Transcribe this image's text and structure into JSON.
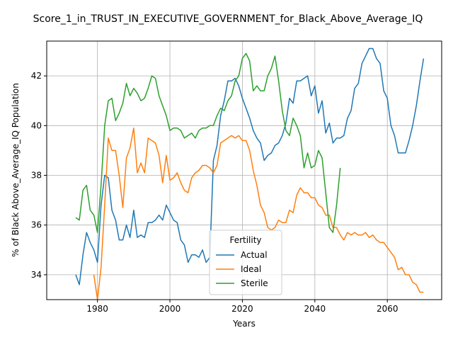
{
  "chart_data": {
    "type": "line",
    "title": "Score_1_in_TRUST_IN_EXECUTIVE_GOVERNMENT_for_Black_Above_Average_IQ",
    "xlabel": "Years",
    "ylabel": "% of Black Above_Average_IQ Population",
    "xlim": [
      1966,
      2075
    ],
    "ylim": [
      33.0,
      43.4
    ],
    "xticks": [
      1980,
      2000,
      2020,
      2040,
      2060
    ],
    "yticks": [
      34,
      36,
      38,
      40,
      42
    ],
    "grid": true,
    "legend": {
      "title": "Fertility",
      "placement": "lower-center"
    },
    "series": [
      {
        "name": "Actual",
        "color": "#1f77b4",
        "x": [
          1974,
          1975,
          1976,
          1977,
          1978,
          1979,
          1980,
          1981,
          1982,
          1983,
          1984,
          1985,
          1986,
          1987,
          1988,
          1989,
          1990,
          1991,
          1992,
          1993,
          1994,
          1995,
          1996,
          1997,
          1998,
          1999,
          2000,
          2001,
          2002,
          2003,
          2004,
          2005,
          2006,
          2007,
          2008,
          2009,
          2010,
          2011,
          2012,
          2013,
          2014,
          2015,
          2016,
          2017,
          2018,
          2019,
          2020,
          2021,
          2022,
          2023,
          2024,
          2025,
          2026,
          2027,
          2028,
          2029,
          2030,
          2031,
          2032,
          2033,
          2034,
          2035,
          2036,
          2037,
          2038,
          2039,
          2040,
          2041,
          2042,
          2043,
          2044,
          2045,
          2046,
          2047,
          2048,
          2049,
          2050,
          2051,
          2052,
          2053,
          2054,
          2055,
          2056,
          2057,
          2058,
          2059,
          2060,
          2061,
          2062,
          2063,
          2064,
          2065,
          2066,
          2067,
          2068,
          2069,
          2070
        ],
        "y": [
          34.0,
          33.6,
          34.8,
          35.7,
          35.3,
          35.0,
          34.5,
          36.8,
          38.0,
          37.9,
          36.6,
          36.2,
          35.4,
          35.4,
          36.0,
          35.5,
          36.6,
          35.5,
          35.6,
          35.5,
          36.1,
          36.1,
          36.2,
          36.4,
          36.2,
          36.8,
          36.5,
          36.2,
          36.1,
          35.4,
          35.2,
          34.5,
          34.8,
          34.8,
          34.7,
          35.0,
          34.5,
          34.7,
          38.6,
          39.2,
          40.4,
          41.0,
          41.8,
          41.8,
          41.9,
          41.6,
          41.1,
          40.7,
          40.3,
          39.8,
          39.5,
          39.3,
          38.6,
          38.8,
          38.9,
          39.2,
          39.3,
          39.6,
          40.1,
          41.1,
          40.9,
          41.8,
          41.8,
          41.9,
          42.0,
          41.2,
          41.6,
          40.5,
          41.0,
          39.7,
          40.1,
          39.3,
          39.5,
          39.5,
          39.6,
          40.3,
          40.6,
          41.5,
          41.7,
          42.5,
          42.8,
          43.1,
          43.1,
          42.7,
          42.5,
          41.4,
          41.1,
          40.0,
          39.6,
          38.9,
          38.9,
          38.9,
          39.4,
          40.0,
          40.8,
          41.8,
          42.7
        ]
      },
      {
        "name": "Ideal",
        "color": "#ff7f0e",
        "x": [
          1979,
          1980,
          1981,
          1982,
          1983,
          1984,
          1985,
          1986,
          1987,
          1988,
          1989,
          1990,
          1991,
          1992,
          1993,
          1994,
          1995,
          1996,
          1997,
          1998,
          1999,
          2000,
          2001,
          2002,
          2003,
          2004,
          2005,
          2006,
          2007,
          2008,
          2009,
          2010,
          2011,
          2012,
          2013,
          2014,
          2015,
          2016,
          2017,
          2018,
          2019,
          2020,
          2021,
          2022,
          2023,
          2024,
          2025,
          2026,
          2027,
          2028,
          2029,
          2030,
          2031,
          2032,
          2033,
          2034,
          2035,
          2036,
          2037,
          2038,
          2039,
          2040,
          2041,
          2042,
          2043,
          2044,
          2045,
          2046,
          2047,
          2048,
          2049,
          2050,
          2051,
          2052,
          2053,
          2054,
          2055,
          2056,
          2057,
          2058,
          2059,
          2060,
          2061,
          2062,
          2063,
          2064,
          2065,
          2066,
          2067,
          2068,
          2069,
          2070
        ],
        "y": [
          34.0,
          33.0,
          34.3,
          36.8,
          39.5,
          39.0,
          39.0,
          38.0,
          36.7,
          38.7,
          39.1,
          39.9,
          38.1,
          38.5,
          38.1,
          39.5,
          39.4,
          39.3,
          38.8,
          37.7,
          38.8,
          37.8,
          37.9,
          38.1,
          37.7,
          37.4,
          37.3,
          37.9,
          38.1,
          38.2,
          38.4,
          38.4,
          38.3,
          38.1,
          38.4,
          39.3,
          39.4,
          39.5,
          39.6,
          39.5,
          39.6,
          39.4,
          39.4,
          39.0,
          38.2,
          37.6,
          36.8,
          36.5,
          35.9,
          35.8,
          35.9,
          36.2,
          36.1,
          36.1,
          36.6,
          36.5,
          37.2,
          37.5,
          37.3,
          37.3,
          37.1,
          37.1,
          36.8,
          36.7,
          36.4,
          36.4,
          35.9,
          35.9,
          35.6,
          35.4,
          35.7,
          35.6,
          35.7,
          35.6,
          35.6,
          35.7,
          35.5,
          35.6,
          35.4,
          35.3,
          35.3,
          35.1,
          34.9,
          34.7,
          34.2,
          34.3,
          34.0,
          34.0,
          33.7,
          33.6,
          33.3,
          33.3
        ]
      },
      {
        "name": "Sterile",
        "color": "#2ca02c",
        "x": [
          1974,
          1975,
          1976,
          1977,
          1978,
          1979,
          1980,
          1981,
          1982,
          1983,
          1984,
          1985,
          1986,
          1987,
          1988,
          1989,
          1990,
          1991,
          1992,
          1993,
          1994,
          1995,
          1996,
          1997,
          1998,
          1999,
          2000,
          2001,
          2002,
          2003,
          2004,
          2005,
          2006,
          2007,
          2008,
          2009,
          2010,
          2011,
          2012,
          2013,
          2014,
          2015,
          2016,
          2017,
          2018,
          2019,
          2020,
          2021,
          2022,
          2023,
          2024,
          2025,
          2026,
          2027,
          2028,
          2029,
          2030,
          2031,
          2032,
          2033,
          2034,
          2035,
          2036,
          2037,
          2038,
          2039,
          2040,
          2041,
          2042,
          2043,
          2044,
          2045,
          2046,
          2047
        ],
        "y": [
          36.3,
          36.2,
          37.4,
          37.6,
          36.6,
          36.4,
          35.7,
          37.6,
          40.0,
          41.0,
          41.1,
          40.2,
          40.5,
          40.9,
          41.7,
          41.2,
          41.5,
          41.3,
          41.0,
          41.1,
          41.5,
          42.0,
          41.9,
          41.2,
          40.8,
          40.4,
          39.8,
          39.9,
          39.9,
          39.8,
          39.5,
          39.6,
          39.7,
          39.5,
          39.8,
          39.9,
          39.9,
          40.0,
          40.0,
          40.4,
          40.7,
          40.6,
          41.0,
          41.2,
          41.8,
          42.0,
          42.7,
          42.9,
          42.6,
          41.4,
          41.6,
          41.4,
          41.4,
          42.0,
          42.3,
          42.8,
          41.8,
          40.6,
          39.8,
          39.6,
          40.3,
          40.0,
          39.6,
          38.3,
          38.9,
          38.3,
          38.4,
          39.0,
          38.7,
          37.3,
          35.9,
          35.7,
          36.8,
          38.3
        ]
      }
    ]
  }
}
